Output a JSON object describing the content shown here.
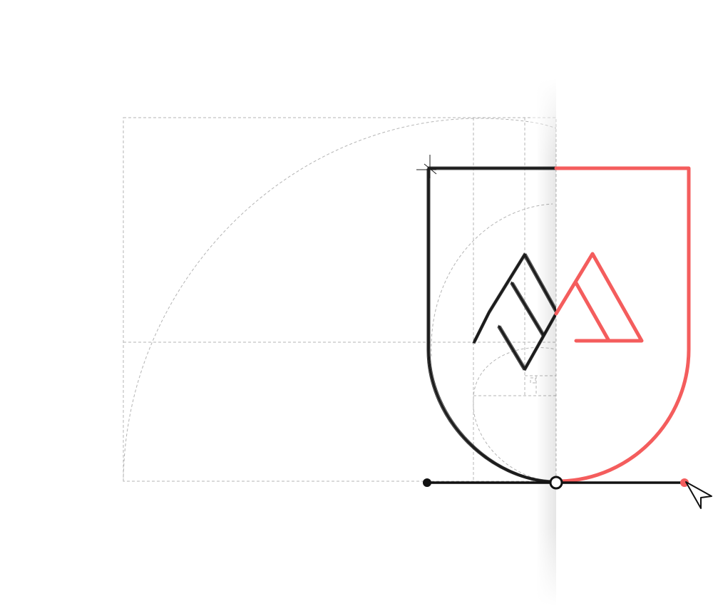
{
  "scene": {
    "description_kind": "logo-construction-illustration",
    "colors": {
      "background": "#ffffff",
      "guide": "#b4b4b4",
      "sketch": "#1c1c1c",
      "accent": "#f45d5d",
      "baseline": "#111111"
    },
    "icons": {
      "cursor": "arrow-cursor-icon",
      "start_anchor": "anchor-point-icon",
      "mid_anchor": "selected-anchor-point-icon",
      "end_anchor": "anchor-point-icon"
    }
  }
}
